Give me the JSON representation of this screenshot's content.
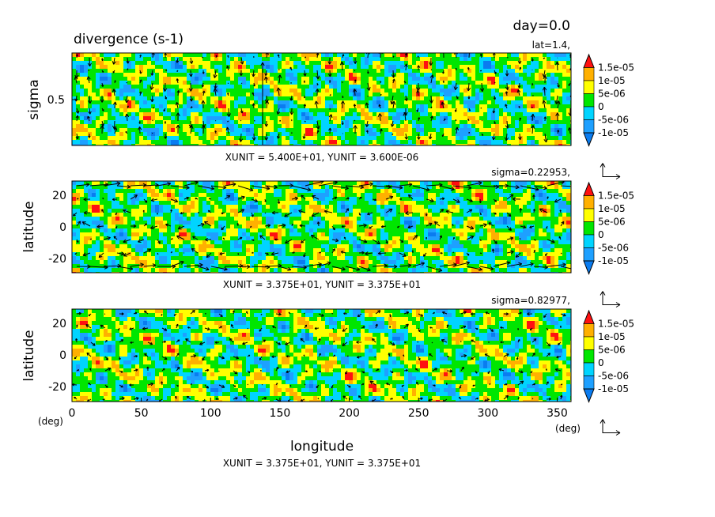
{
  "header": {
    "day": "day=0.0",
    "title": "divergence (s-1)"
  },
  "colors": {
    "levels": [
      "#0a7cf0",
      "#1ea0ff",
      "#00d4ff",
      "#00e600",
      "#ffff00",
      "#ffb000",
      "#ff1010"
    ],
    "arrow": "#000000"
  },
  "colorbar": {
    "labels": [
      "1.5e-05",
      "1e-05",
      "5e-06",
      "0",
      "-5e-06",
      "-1e-05"
    ]
  },
  "chart_data": [
    {
      "type": "heatmap",
      "panel": "top",
      "field": "divergence (s-1)",
      "level_label": "lat=1.4,",
      "ylabel": "sigma",
      "yticks": [
        "0.5"
      ],
      "xlim": [
        0,
        360
      ],
      "ylim": [
        0,
        1
      ],
      "vector_unit": "XUNIT = 5.400E+01, YUNIT = 3.600E-06"
    },
    {
      "type": "heatmap",
      "panel": "middle",
      "level_label": "sigma=0.22953,",
      "ylabel": "latitude",
      "yticks": [
        "20",
        "0",
        "-20"
      ],
      "xlim": [
        0,
        360
      ],
      "ylim": [
        -30,
        30
      ],
      "vector_unit": "XUNIT = 3.375E+01, YUNIT = 3.375E+01"
    },
    {
      "type": "heatmap",
      "panel": "bottom",
      "level_label": "sigma=0.82977,",
      "ylabel": "latitude",
      "yticks": [
        "20",
        "0",
        "-20"
      ],
      "xlabel": "longitude",
      "xticks": [
        "0",
        "50",
        "100",
        "150",
        "200",
        "250",
        "300",
        "350"
      ],
      "x_unit": "(deg)",
      "y_unit": "(deg)",
      "xlim": [
        0,
        360
      ],
      "ylim": [
        -30,
        30
      ],
      "vector_unit": "XUNIT = 3.375E+01, YUNIT = 3.375E+01"
    }
  ]
}
